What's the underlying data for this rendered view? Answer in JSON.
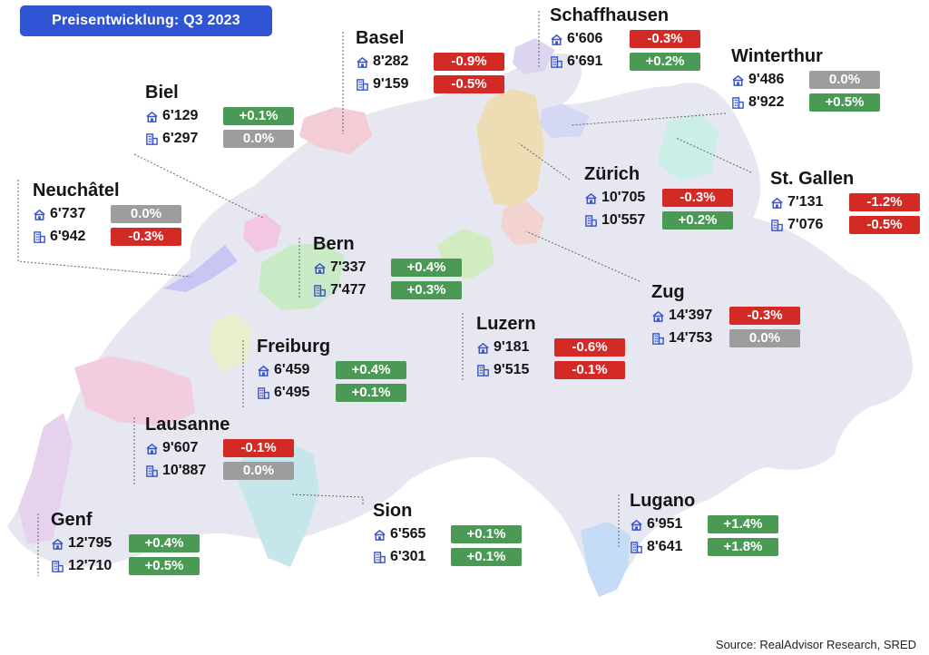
{
  "title": "Preisentwicklung: Q3 2023",
  "source": "Source: RealAdvisor Research, SRED",
  "icons": {
    "house": "house-icon",
    "apartment": "apartment-building-icon"
  },
  "colors": {
    "title_bg": "#2f55d4",
    "positive": "#4a9a55",
    "negative": "#d42a26",
    "neutral": "#9d9d9d",
    "icon": "#3a55c8",
    "country": "#e6e7f0"
  },
  "cities": [
    {
      "name": "Basel",
      "house_price": "8'282",
      "house_change": "-0.9%",
      "apartment_price": "9'159",
      "apartment_change": "-0.5%"
    },
    {
      "name": "Schaffhausen",
      "house_price": "6'606",
      "house_change": "-0.3%",
      "apartment_price": "6'691",
      "apartment_change": "+0.2%"
    },
    {
      "name": "Winterthur",
      "house_price": "9'486",
      "house_change": "0.0%",
      "apartment_price": "8'922",
      "apartment_change": "+0.5%"
    },
    {
      "name": "Biel",
      "house_price": "6'129",
      "house_change": "+0.1%",
      "apartment_price": "6'297",
      "apartment_change": "0.0%"
    },
    {
      "name": "Zürich",
      "house_price": "10'705",
      "house_change": "-0.3%",
      "apartment_price": "10'557",
      "apartment_change": "+0.2%"
    },
    {
      "name": "St. Gallen",
      "house_price": "7'131",
      "house_change": "-1.2%",
      "apartment_price": "7'076",
      "apartment_change": "-0.5%"
    },
    {
      "name": "Neuchâtel",
      "house_price": "6'737",
      "house_change": "0.0%",
      "apartment_price": "6'942",
      "apartment_change": "-0.3%"
    },
    {
      "name": "Bern",
      "house_price": "7'337",
      "house_change": "+0.4%",
      "apartment_price": "7'477",
      "apartment_change": "+0.3%"
    },
    {
      "name": "Zug",
      "house_price": "14'397",
      "house_change": "-0.3%",
      "apartment_price": "14'753",
      "apartment_change": "0.0%"
    },
    {
      "name": "Luzern",
      "house_price": "9'181",
      "house_change": "-0.6%",
      "apartment_price": "9'515",
      "apartment_change": "-0.1%"
    },
    {
      "name": "Freiburg",
      "house_price": "6'459",
      "house_change": "+0.4%",
      "apartment_price": "6'495",
      "apartment_change": "+0.1%"
    },
    {
      "name": "Lausanne",
      "house_price": "9'607",
      "house_change": "-0.1%",
      "apartment_price": "10'887",
      "apartment_change": "0.0%"
    },
    {
      "name": "Sion",
      "house_price": "6'565",
      "house_change": "+0.1%",
      "apartment_price": "6'301",
      "apartment_change": "+0.1%"
    },
    {
      "name": "Lugano",
      "house_price": "6'951",
      "house_change": "+1.4%",
      "apartment_price": "8'641",
      "apartment_change": "+1.8%"
    },
    {
      "name": "Genf",
      "house_price": "12'795",
      "house_change": "+0.4%",
      "apartment_price": "12'710",
      "apartment_change": "+0.5%"
    }
  ]
}
